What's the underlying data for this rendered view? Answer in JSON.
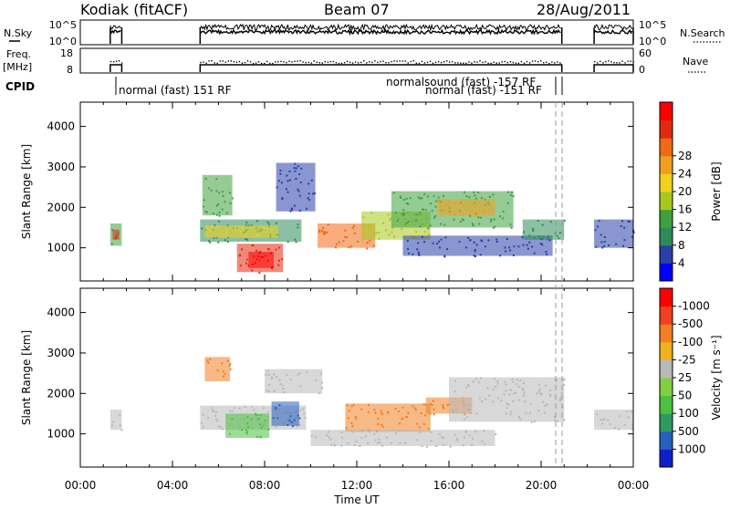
{
  "header": {
    "station": "Kodiak (fitACF)",
    "beam": "Beam 07",
    "date": "28/Aug/2011"
  },
  "strips": {
    "nsky_label": "N.Sky",
    "nsky_ticks": [
      "10^5",
      "10^0"
    ],
    "nsearch_label": "N.Search",
    "nsearch_ticks": [
      "10^5",
      "10^0"
    ],
    "freq_label_line1": "Freq.",
    "freq_label_line2": "[MHz]",
    "freq_ticks": [
      "18",
      "8"
    ],
    "nave_label": "Nave",
    "nave_ticks": [
      "60",
      "0"
    ],
    "cpid_label": "CPID",
    "cpid_texts": [
      "normal (fast) 151 RF",
      "normalsound (fast) -157 RF",
      "normal (fast) -151 RF"
    ]
  },
  "power_colorbar": {
    "label": "Power [dB]",
    "ticks": [
      "4",
      "8",
      "12",
      "16",
      "20",
      "24",
      "28"
    ],
    "colors": [
      "#0000ff",
      "#2a3fa8",
      "#2e8b57",
      "#3fa040",
      "#a8c81e",
      "#f0d21e",
      "#f0a01e",
      "#f06a14",
      "#e02a10",
      "#ff0000"
    ]
  },
  "velocity_colorbar": {
    "label": "Velocity [m s⁻¹]",
    "ticks": [
      "1000",
      "500",
      "100",
      "50",
      "25",
      "-25",
      "-100",
      "-500",
      "-1000"
    ],
    "colors": [
      "#1020c8",
      "#2860c0",
      "#2e9a60",
      "#4cc040",
      "#80d040",
      "#b8b8b8",
      "#f0b020",
      "#f08020",
      "#f04020",
      "#ff0000"
    ]
  },
  "chart_data": [
    {
      "type": "heatmap",
      "title": "",
      "ylabel": "Slant Range [km]",
      "xlabel": "Time UT",
      "x_ticks": [
        "00:00",
        "04:00",
        "08:00",
        "12:00",
        "16:00",
        "20:00",
        "00:00"
      ],
      "x_range_hours": [
        0,
        24
      ],
      "y_ticks": [
        1000,
        2000,
        3000,
        4000
      ],
      "ylim": [
        180,
        4600
      ],
      "colorbar": "Power [dB]",
      "blobs": [
        {
          "t0": 1.3,
          "t1": 1.8,
          "r0": 1050,
          "r1": 1600,
          "color": "#3fa040"
        },
        {
          "t0": 1.4,
          "t1": 1.7,
          "r0": 1200,
          "r1": 1450,
          "color": "#e02a10"
        },
        {
          "t0": 5.2,
          "t1": 9.6,
          "r0": 1150,
          "r1": 1700,
          "color": "#2e8b57"
        },
        {
          "t0": 5.4,
          "t1": 8.6,
          "r0": 1250,
          "r1": 1550,
          "color": "#f0d21e"
        },
        {
          "t0": 5.3,
          "t1": 6.6,
          "r0": 1800,
          "r1": 2800,
          "color": "#3fa040"
        },
        {
          "t0": 6.8,
          "t1": 8.8,
          "r0": 400,
          "r1": 1100,
          "color": "#e02a10"
        },
        {
          "t0": 7.3,
          "t1": 8.4,
          "r0": 500,
          "r1": 900,
          "color": "#ff0000"
        },
        {
          "t0": 8.5,
          "t1": 10.2,
          "r0": 1900,
          "r1": 3100,
          "color": "#2a3fa8"
        },
        {
          "t0": 10.3,
          "t1": 12.8,
          "r0": 1000,
          "r1": 1600,
          "color": "#f06a14"
        },
        {
          "t0": 12.2,
          "t1": 15.2,
          "r0": 1200,
          "r1": 1900,
          "color": "#a8c81e"
        },
        {
          "t0": 13.5,
          "t1": 18.8,
          "r0": 1500,
          "r1": 2400,
          "color": "#3fa040"
        },
        {
          "t0": 15.5,
          "t1": 18.0,
          "r0": 1800,
          "r1": 2200,
          "color": "#f0a01e"
        },
        {
          "t0": 14.0,
          "t1": 20.5,
          "r0": 800,
          "r1": 1300,
          "color": "#2a3fa8"
        },
        {
          "t0": 19.2,
          "t1": 21.0,
          "r0": 1200,
          "r1": 1700,
          "color": "#2e8b57"
        },
        {
          "t0": 22.3,
          "t1": 24.0,
          "r0": 1000,
          "r1": 1700,
          "color": "#2a3fa8"
        }
      ]
    },
    {
      "type": "heatmap",
      "title": "",
      "ylabel": "Slant Range [km]",
      "xlabel": "Time UT",
      "x_ticks": [
        "00:00",
        "04:00",
        "08:00",
        "12:00",
        "16:00",
        "20:00",
        "00:00"
      ],
      "x_range_hours": [
        0,
        24
      ],
      "y_ticks": [
        1000,
        2000,
        3000,
        4000
      ],
      "ylim": [
        180,
        4600
      ],
      "colorbar": "Velocity [m s⁻¹]",
      "blobs": [
        {
          "t0": 1.3,
          "t1": 1.8,
          "r0": 1100,
          "r1": 1600,
          "color": "#b8b8b8"
        },
        {
          "t0": 5.2,
          "t1": 9.8,
          "r0": 1100,
          "r1": 1700,
          "color": "#b8b8b8"
        },
        {
          "t0": 5.4,
          "t1": 6.5,
          "r0": 2300,
          "r1": 2900,
          "color": "#f08020"
        },
        {
          "t0": 6.3,
          "t1": 8.2,
          "r0": 900,
          "r1": 1500,
          "color": "#4cc040"
        },
        {
          "t0": 8.3,
          "t1": 9.5,
          "r0": 1200,
          "r1": 1800,
          "color": "#2860c0"
        },
        {
          "t0": 8.0,
          "t1": 10.5,
          "r0": 2000,
          "r1": 2600,
          "color": "#b8b8b8"
        },
        {
          "t0": 11.5,
          "t1": 15.2,
          "r0": 1050,
          "r1": 1750,
          "color": "#f08020"
        },
        {
          "t0": 15.0,
          "t1": 17.0,
          "r0": 1500,
          "r1": 1900,
          "color": "#f08020"
        },
        {
          "t0": 16.0,
          "t1": 21.0,
          "r0": 1300,
          "r1": 2400,
          "color": "#b8b8b8"
        },
        {
          "t0": 10.0,
          "t1": 18.0,
          "r0": 700,
          "r1": 1100,
          "color": "#b8b8b8"
        },
        {
          "t0": 22.3,
          "t1": 24.0,
          "r0": 1100,
          "r1": 1600,
          "color": "#b8b8b8"
        }
      ]
    }
  ]
}
